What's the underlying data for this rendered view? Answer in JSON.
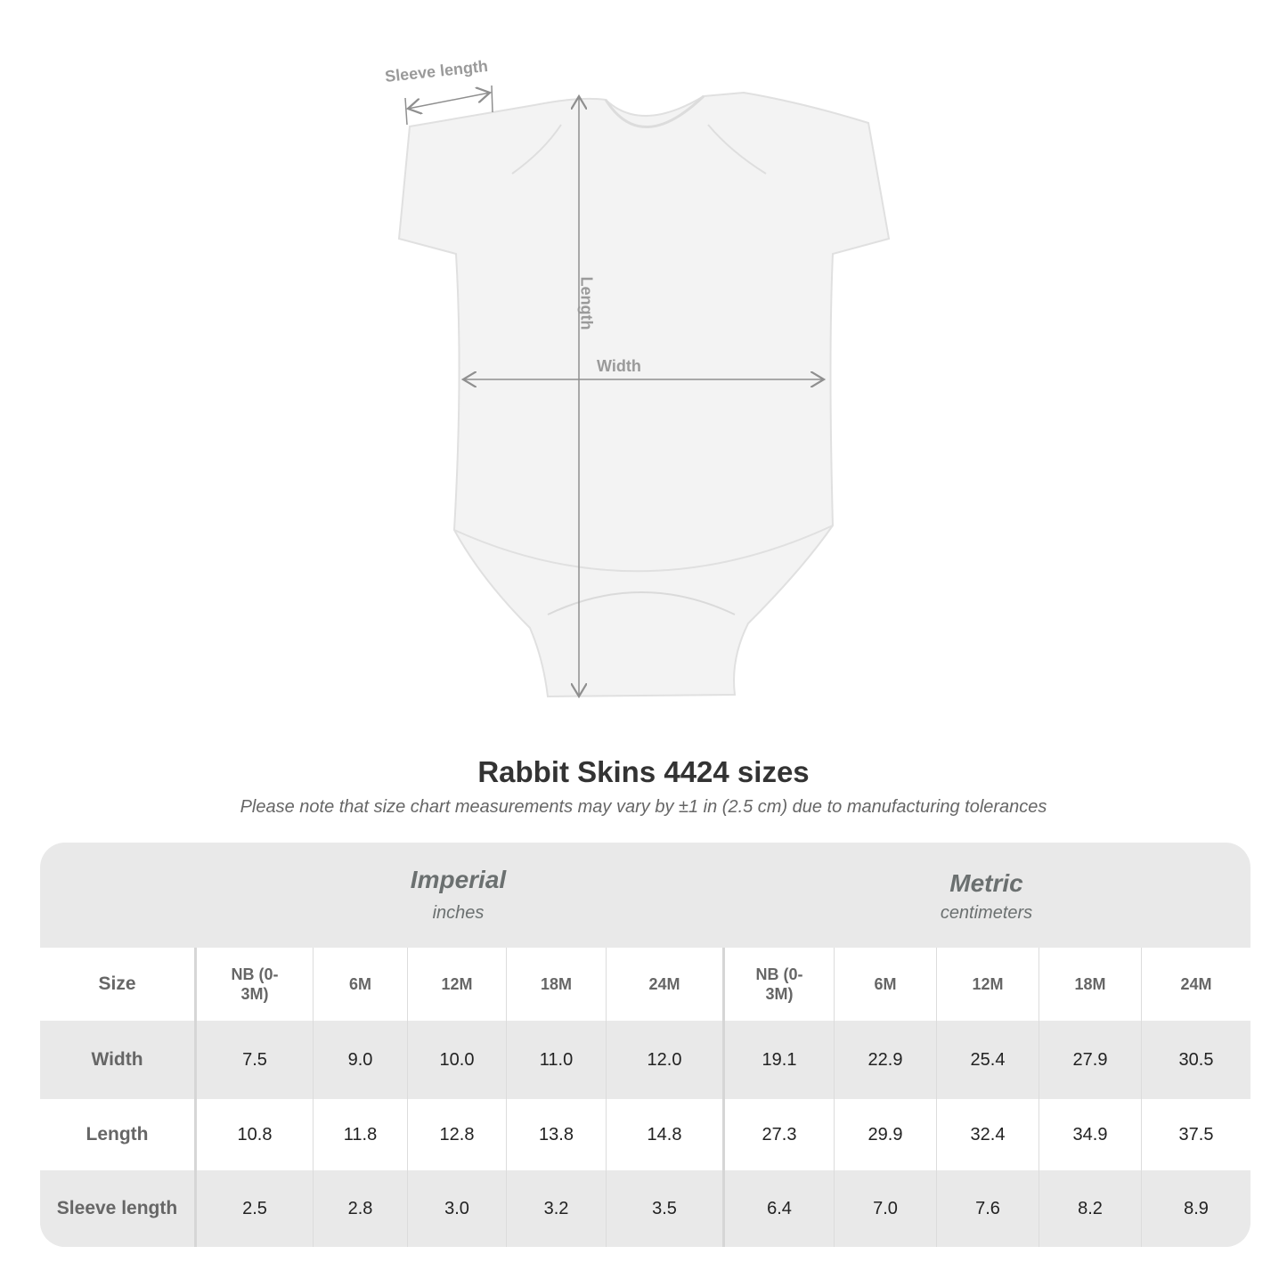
{
  "diagram": {
    "sleeve_label": "Sleeve length",
    "length_label": "Length",
    "width_label": "Width"
  },
  "title": "Rabbit Skins 4424 sizes",
  "subtitle": "Please note that size chart measurements may vary by ±1 in (2.5 cm) due to manufacturing tolerances",
  "table": {
    "imperial": {
      "label": "Imperial",
      "unit": "inches"
    },
    "metric": {
      "label": "Metric",
      "unit": "centimeters"
    },
    "size_label": "Size",
    "sizes": [
      "NB (0-3M)",
      "6M",
      "12M",
      "18M",
      "24M"
    ],
    "rows": [
      {
        "label": "Width",
        "imperial": [
          "7.5",
          "9.0",
          "10.0",
          "11.0",
          "12.0"
        ],
        "metric": [
          "19.1",
          "22.9",
          "25.4",
          "27.9",
          "30.5"
        ]
      },
      {
        "label": "Length",
        "imperial": [
          "10.8",
          "11.8",
          "12.8",
          "13.8",
          "14.8"
        ],
        "metric": [
          "27.3",
          "29.9",
          "32.4",
          "34.9",
          "37.5"
        ]
      },
      {
        "label": "Sleeve length",
        "imperial": [
          "2.5",
          "2.8",
          "3.0",
          "3.2",
          "3.5"
        ],
        "metric": [
          "6.4",
          "7.0",
          "7.6",
          "8.2",
          "8.9"
        ]
      }
    ]
  }
}
